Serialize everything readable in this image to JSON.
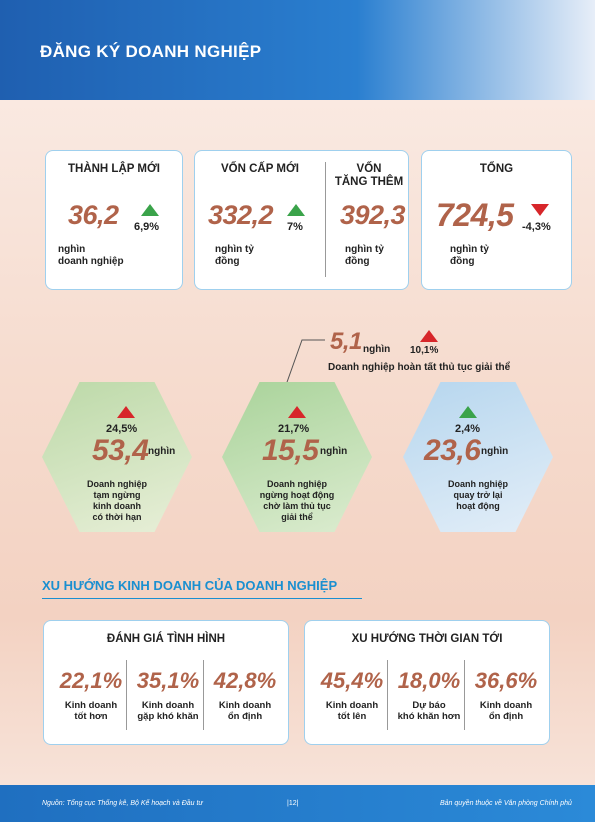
{
  "header": {
    "title": "ĐĂNG KÝ DOANH NGHIỆP"
  },
  "cards": [
    {
      "items": [
        {
          "title": "THÀNH LẬP MỚI",
          "value": "36,2",
          "change": "6,9%",
          "unit": "nghìn\ndoanh nghiệp"
        }
      ]
    },
    {
      "items": [
        {
          "title": "VỐN CẤP MỚI",
          "value": "332,2",
          "change": "7%",
          "unit": "nghìn tỷ\nđồng"
        },
        {
          "title": "VỐN\nTĂNG THÊM",
          "value": "392,3",
          "unit": "nghìn tỷ\nđồng"
        }
      ]
    },
    {
      "items": [
        {
          "title": "TỔNG",
          "value": "724,5",
          "change": "-4,3%",
          "unit": "nghìn tỷ\nđồng"
        }
      ]
    }
  ],
  "dissolved": {
    "value": "5,1",
    "unit": "nghìn",
    "change": "10,1%",
    "label": "Doanh nghiệp hoàn tất thủ tục giải thể"
  },
  "hexagons": [
    {
      "change": "24,5%",
      "value": "53,4",
      "unit": "nghìn",
      "label": "Doanh nghiệp\ntạm ngừng\nkinh doanh\ncó thời hạn"
    },
    {
      "change": "21,7%",
      "value": "15,5",
      "unit": "nghìn",
      "label": "Doanh nghiệp\nngừng hoạt động\nchờ làm thủ tục\ngiải thể"
    },
    {
      "change": "2,4%",
      "value": "23,6",
      "unit": "nghìn",
      "label": "Doanh nghiệp\nquay trở lại\nhoạt động"
    }
  ],
  "trend": {
    "title": "XU HƯỚNG KINH DOANH CỦA DOANH NGHIỆP",
    "panels": [
      {
        "title": "ĐÁNH GIÁ TÌNH HÌNH",
        "items": [
          {
            "value": "22,1%",
            "label": "Kinh doanh\ntốt hơn"
          },
          {
            "value": "35,1%",
            "label": "Kinh doanh\ngặp khó khăn"
          },
          {
            "value": "42,8%",
            "label": "Kinh doanh\nổn định"
          }
        ]
      },
      {
        "title": "XU HƯỚNG THỜI GIAN TỚI",
        "items": [
          {
            "value": "45,4%",
            "label": "Kinh doanh\ntốt lên"
          },
          {
            "value": "18,0%",
            "label": "Dự báo\nkhó khăn hơn"
          },
          {
            "value": "36,6%",
            "label": "Kinh doanh\nổn định"
          }
        ]
      }
    ]
  },
  "footer": {
    "source": "Nguồn: Tổng cục Thống kê, Bộ Kế hoạch và Đầu tư",
    "page": "|12|",
    "copyright": "Bản quyền thuộc về Văn phòng Chính phủ"
  }
}
